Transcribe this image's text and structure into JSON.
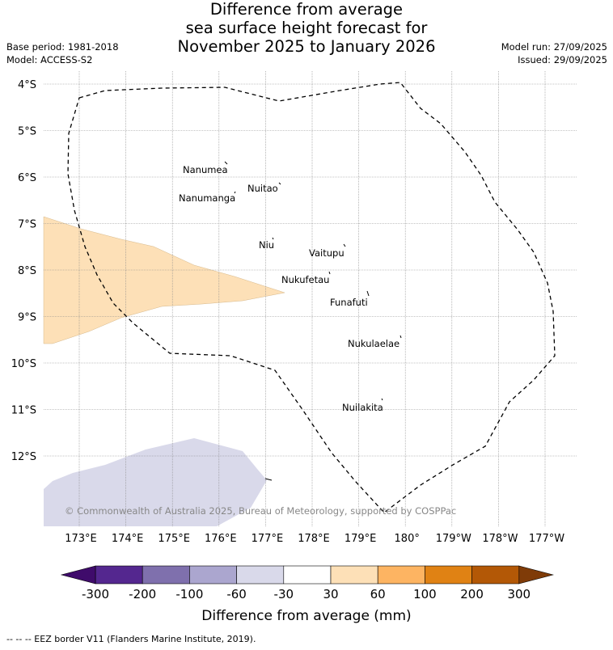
{
  "header": {
    "title_lines": [
      "Difference from average",
      "sea surface height forecast for",
      "November 2025 to January 2026"
    ],
    "base_period": "Base period: 1981-2018",
    "model": "Model: ACCESS-S2",
    "model_run": "Model run: 27/09/2025",
    "issued": "Issued: 29/09/2025"
  },
  "map": {
    "lat_labels": [
      "4°S",
      "5°S",
      "6°S",
      "7°S",
      "8°S",
      "9°S",
      "10°S",
      "11°S",
      "12°S"
    ],
    "lon_labels": [
      "173°E",
      "174°E",
      "175°E",
      "176°E",
      "177°E",
      "178°E",
      "179°E",
      "180°",
      "179°W",
      "178°W",
      "177°W"
    ],
    "islands": [
      {
        "name": "Nanumea"
      },
      {
        "name": "Nuitao"
      },
      {
        "name": "Nanumanga"
      },
      {
        "name": "Niu"
      },
      {
        "name": "Vaitupu"
      },
      {
        "name": "Nukufetau"
      },
      {
        "name": "Funafuti"
      },
      {
        "name": "Nukulaelae"
      },
      {
        "name": "Nuilakita"
      }
    ],
    "anomaly_regions": [
      {
        "category": "30 to 60",
        "color": "#fde0b7"
      },
      {
        "category": "-60 to -30",
        "color": "#d9d9ea"
      }
    ],
    "copyright": "© Commonwealth of Australia 2025, Bureau of Meteorology, supported by COSPPac",
    "eez_border_style": "dashed"
  },
  "colorbar": {
    "tick_labels": [
      "-300",
      "-200",
      "-100",
      "-60",
      "-30",
      "30",
      "60",
      "100",
      "200",
      "300"
    ],
    "colors": [
      "#3f0b6b",
      "#54278f",
      "#7f70ad",
      "#aba6cf",
      "#d9d9ea",
      "#ffffff",
      "#fde0b7",
      "#fdb462",
      "#e08214",
      "#b35806",
      "#7f3b08"
    ],
    "label": "Difference from average (mm)"
  },
  "footer": {
    "legend_text": "--  --  -- EEZ border V11 (Flanders Marine Institute, 2019)."
  }
}
